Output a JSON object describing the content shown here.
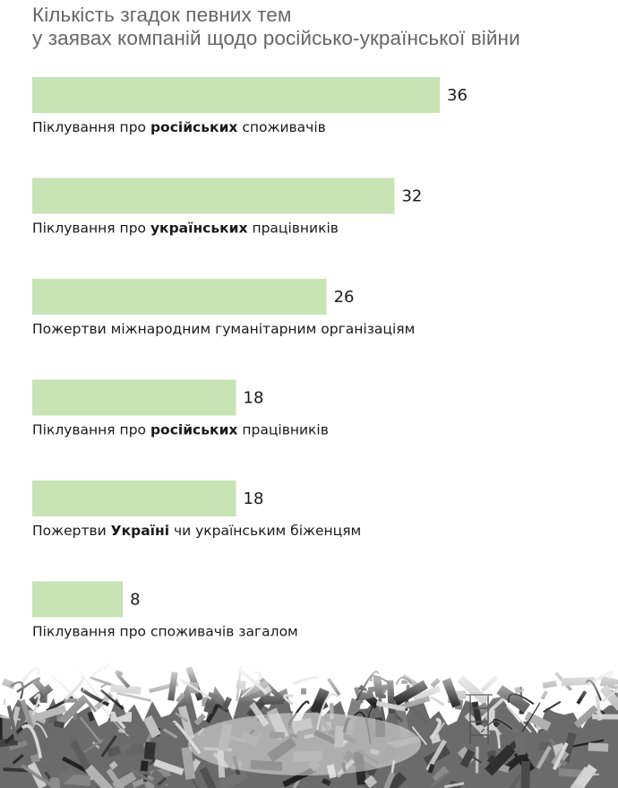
{
  "header": {
    "title_line1": "Кількість згадок певних тем",
    "title_line2": "у заявах компаній щодо російсько-української війни"
  },
  "chart_data": {
    "type": "bar",
    "orientation": "horizontal",
    "title": "Кількість згадок певних тем у заявах компаній щодо російсько-української війни",
    "xlim": [
      0,
      36
    ],
    "grid": false,
    "bar_color": "#c8e3b4",
    "categories": [
      "Піклування про російських споживачів",
      "Піклування про українських працівників",
      "Пожертви міжнародним гуманітарним організаціям",
      "Піклування про російських працівників",
      "Пожертви Україні чи українським біженцям",
      "Піклування про споживачів загалом"
    ],
    "label_parts": [
      [
        {
          "t": "Піклування про ",
          "b": false
        },
        {
          "t": "російських",
          "b": true
        },
        {
          "t": " споживачів",
          "b": false
        }
      ],
      [
        {
          "t": "Піклування про ",
          "b": false
        },
        {
          "t": "українських",
          "b": true
        },
        {
          "t": " працівників",
          "b": false
        }
      ],
      [
        {
          "t": "Пожертви міжнародним гуманітарним організаціям",
          "b": false
        }
      ],
      [
        {
          "t": "Піклування про ",
          "b": false
        },
        {
          "t": "російських",
          "b": true
        },
        {
          "t": " працівників",
          "b": false
        }
      ],
      [
        {
          "t": "Пожертви ",
          "b": false
        },
        {
          "t": "Україні",
          "b": true
        },
        {
          "t": " чи українським біженцям",
          "b": false
        }
      ],
      [
        {
          "t": "Піклування про споживачів загалом",
          "b": false
        }
      ]
    ],
    "values": [
      36,
      32,
      26,
      18,
      18,
      8
    ]
  },
  "decoration": {
    "footer_image": "war-ruins-rubble-photo"
  }
}
